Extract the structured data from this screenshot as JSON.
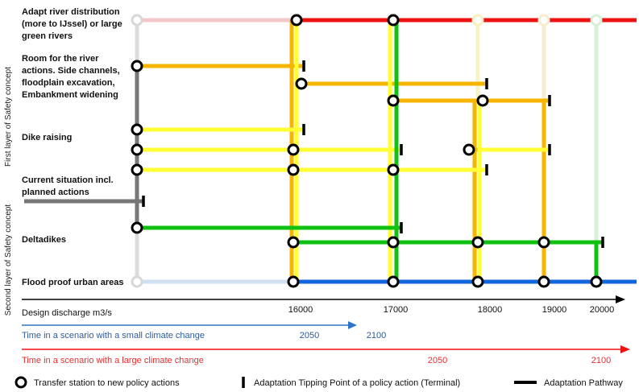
{
  "side_labels": {
    "first_layer": "First layer of Safety concept",
    "second_layer": "Second layer of Safety concept"
  },
  "measures": [
    {
      "lines": [
        "Adapt river distribution",
        "(more to IJssel) or large",
        "green rivers"
      ]
    },
    {
      "lines": [
        "Room for the river",
        "actions. Side channels,",
        "floodplain excavation,",
        "Embankment widening"
      ]
    },
    {
      "lines": [
        "Dike raising"
      ]
    },
    {
      "lines": [
        "Current situation incl.",
        "planned actions"
      ]
    },
    {
      "lines": [
        "Deltadikes"
      ]
    },
    {
      "lines": [
        "Flood proof urban areas"
      ]
    }
  ],
  "axis": {
    "label": "Design discharge m3/s",
    "ticks": [
      "16000",
      "17000",
      "18000",
      "19000",
      "20000"
    ]
  },
  "small_climate": {
    "label": "Time in a scenario with a small climate change",
    "years": [
      "2050",
      "2100"
    ]
  },
  "large_climate": {
    "label": "Time in a scenario with a large climate change",
    "years": [
      "2050",
      "2100"
    ]
  },
  "legend": {
    "transfer": "Transfer station to new policy actions",
    "tipping": "Adaptation Tipping Point of a policy action (Terminal)",
    "pathway": "Adaptation Pathway"
  },
  "colors": {
    "red": "#ee1111",
    "orange": "#f7b500",
    "yellow": "#ffff33",
    "green": "#11c111",
    "blue": "#1166dd",
    "grey": "#777777"
  }
}
